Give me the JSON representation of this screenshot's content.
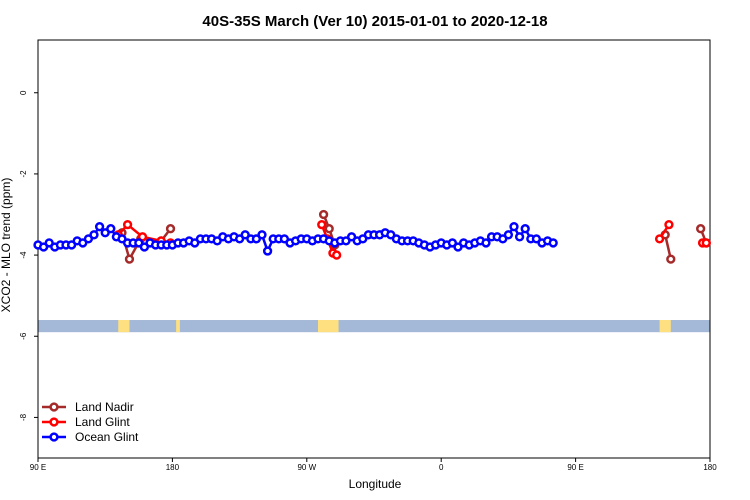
{
  "chart_data": {
    "type": "line",
    "title": "40S-35S March (Ver 10)   2015-01-01 to 2020-12-18",
    "xlabel": "Longitude",
    "ylabel": "XCO2 - MLO trend (ppm)",
    "x_range": [
      90,
      450
    ],
    "ylim": [
      -9,
      1.3
    ],
    "x_ticks": [
      {
        "value": 90,
        "label": "90 E"
      },
      {
        "value": 162,
        "label": "180"
      },
      {
        "value": 234,
        "label": "90 W"
      },
      {
        "value": 306,
        "label": "0"
      },
      {
        "value": 378,
        "label": "90 E"
      },
      {
        "value": 450,
        "label": "180"
      }
    ],
    "y_ticks": [
      {
        "value": 0,
        "label": "0"
      },
      {
        "value": -2,
        "label": "-2"
      },
      {
        "value": -4,
        "label": "-4"
      },
      {
        "value": -6,
        "label": "-6"
      },
      {
        "value": -8,
        "label": "-8"
      }
    ],
    "land_band": {
      "y_top": -5.6,
      "y_bottom": -5.9,
      "color": "#a4b9d8",
      "land_color": "#ffe080"
    },
    "land_masses": [
      [
        133,
        139
      ],
      [
        164,
        166
      ],
      [
        240,
        251
      ],
      [
        423,
        429
      ],
      [
        451,
        454
      ]
    ],
    "legend": {
      "position": "bottom-left"
    },
    "series": [
      {
        "name": "Land Nadir",
        "color": "#a52a2a",
        "segments": [
          [
            [
              135,
              -3.45
            ],
            [
              139,
              -4.1
            ],
            [
              145,
              -3.6
            ],
            [
              156,
              -3.65
            ],
            [
              161,
              -3.35
            ]
          ],
          [
            [
              243,
              -3.0
            ],
            [
              246,
              -3.35
            ],
            [
              249,
              -3.75
            ]
          ],
          [
            [
              426,
              -3.5
            ],
            [
              429,
              -4.1
            ]
          ],
          [
            [
              445,
              -3.35
            ],
            [
              448,
              -3.7
            ]
          ]
        ]
      },
      {
        "name": "Land Glint",
        "color": "#ff0000",
        "segments": [
          [
            [
              133,
              -3.5
            ],
            [
              138,
              -3.25
            ],
            [
              146,
              -3.55
            ],
            [
              156,
              -3.65
            ],
            [
              161,
              -3.7
            ]
          ],
          [
            [
              242,
              -3.25
            ],
            [
              245,
              -3.6
            ],
            [
              248,
              -3.95
            ],
            [
              250,
              -4.0
            ]
          ],
          [
            [
              423,
              -3.6
            ],
            [
              428,
              -3.25
            ]
          ],
          [
            [
              446,
              -3.7
            ],
            [
              448,
              -3.7
            ]
          ]
        ]
      },
      {
        "name": "Ocean Glint",
        "color": "#0000ff",
        "segments": [
          [
            [
              90,
              -3.75
            ],
            [
              93,
              -3.8
            ],
            [
              96,
              -3.7
            ],
            [
              99,
              -3.8
            ],
            [
              102,
              -3.75
            ],
            [
              105,
              -3.75
            ],
            [
              108,
              -3.75
            ],
            [
              111,
              -3.65
            ],
            [
              114,
              -3.7
            ],
            [
              117,
              -3.6
            ],
            [
              120,
              -3.5
            ],
            [
              123,
              -3.3
            ],
            [
              126,
              -3.45
            ],
            [
              129,
              -3.35
            ],
            [
              132,
              -3.55
            ],
            [
              135,
              -3.6
            ],
            [
              138,
              -3.7
            ],
            [
              141,
              -3.7
            ],
            [
              144,
              -3.7
            ],
            [
              147,
              -3.8
            ],
            [
              150,
              -3.7
            ],
            [
              153,
              -3.75
            ],
            [
              156,
              -3.75
            ],
            [
              159,
              -3.75
            ],
            [
              162,
              -3.75
            ],
            [
              165,
              -3.7
            ],
            [
              168,
              -3.7
            ],
            [
              171,
              -3.65
            ],
            [
              174,
              -3.7
            ],
            [
              177,
              -3.6
            ],
            [
              180,
              -3.6
            ],
            [
              183,
              -3.6
            ],
            [
              186,
              -3.65
            ],
            [
              189,
              -3.55
            ],
            [
              192,
              -3.6
            ],
            [
              195,
              -3.55
            ],
            [
              198,
              -3.6
            ],
            [
              201,
              -3.5
            ],
            [
              204,
              -3.6
            ],
            [
              207,
              -3.6
            ],
            [
              210,
              -3.5
            ],
            [
              213,
              -3.9
            ],
            [
              216,
              -3.6
            ],
            [
              219,
              -3.6
            ],
            [
              222,
              -3.6
            ],
            [
              225,
              -3.7
            ],
            [
              228,
              -3.65
            ],
            [
              231,
              -3.6
            ],
            [
              234,
              -3.6
            ],
            [
              237,
              -3.65
            ],
            [
              240,
              -3.6
            ],
            [
              243,
              -3.6
            ],
            [
              246,
              -3.65
            ],
            [
              249,
              -3.7
            ],
            [
              252,
              -3.65
            ],
            [
              255,
              -3.65
            ],
            [
              258,
              -3.55
            ],
            [
              261,
              -3.65
            ],
            [
              264,
              -3.6
            ],
            [
              267,
              -3.5
            ],
            [
              270,
              -3.5
            ],
            [
              273,
              -3.5
            ],
            [
              276,
              -3.45
            ],
            [
              279,
              -3.5
            ],
            [
              282,
              -3.6
            ],
            [
              285,
              -3.65
            ],
            [
              288,
              -3.65
            ],
            [
              291,
              -3.65
            ],
            [
              294,
              -3.7
            ],
            [
              297,
              -3.75
            ],
            [
              300,
              -3.8
            ],
            [
              303,
              -3.75
            ],
            [
              306,
              -3.7
            ],
            [
              309,
              -3.75
            ],
            [
              312,
              -3.7
            ],
            [
              315,
              -3.8
            ],
            [
              318,
              -3.7
            ],
            [
              321,
              -3.75
            ],
            [
              324,
              -3.7
            ],
            [
              327,
              -3.65
            ],
            [
              330,
              -3.7
            ],
            [
              333,
              -3.55
            ],
            [
              336,
              -3.55
            ],
            [
              339,
              -3.6
            ],
            [
              342,
              -3.5
            ],
            [
              345,
              -3.3
            ],
            [
              348,
              -3.55
            ],
            [
              351,
              -3.35
            ],
            [
              354,
              -3.6
            ],
            [
              357,
              -3.6
            ],
            [
              360,
              -3.7
            ],
            [
              363,
              -3.65
            ],
            [
              366,
              -3.7
            ]
          ]
        ]
      }
    ]
  }
}
